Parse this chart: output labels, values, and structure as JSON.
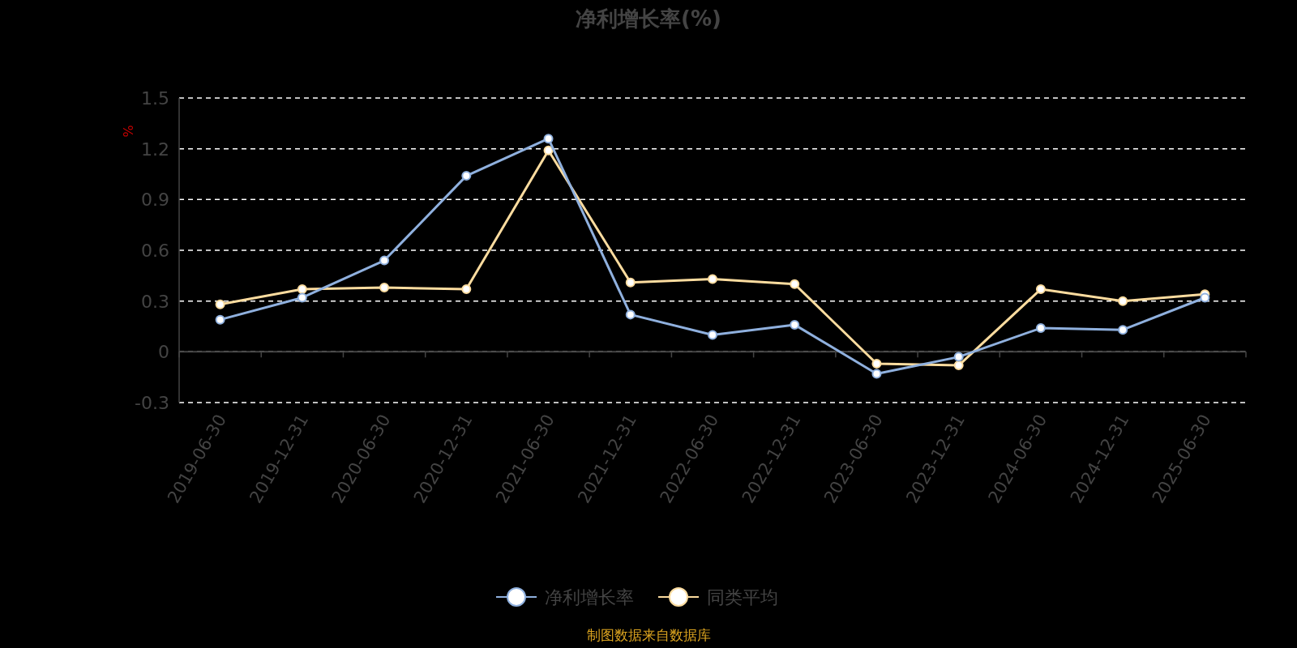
{
  "chart_data": {
    "type": "line",
    "title": "净利增长率(%)",
    "ylabel": "%",
    "categories": [
      "2019-06-30",
      "2019-12-31",
      "2020-06-30",
      "2020-12-31",
      "2021-06-30",
      "2021-12-31",
      "2022-06-30",
      "2022-12-31",
      "2023-06-30",
      "2023-12-31",
      "2024-06-30",
      "2024-12-31",
      "2025-06-30"
    ],
    "series": [
      {
        "name": "净利增长率",
        "color": "#8fb0de",
        "values": [
          0.19,
          0.32,
          0.54,
          1.04,
          1.26,
          0.22,
          0.1,
          0.16,
          -0.13,
          -0.03,
          0.14,
          0.13,
          0.32
        ]
      },
      {
        "name": "同类平均",
        "color": "#fcdc9f",
        "values": [
          0.28,
          0.37,
          0.38,
          0.37,
          1.19,
          0.41,
          0.43,
          0.4,
          -0.07,
          -0.08,
          0.37,
          0.3,
          0.34
        ]
      }
    ],
    "ylim": [
      -0.3,
      1.5
    ],
    "yticks": [
      -0.3,
      0,
      0.3,
      0.6,
      0.9,
      1.2,
      1.5
    ],
    "grid": "y",
    "legend": "bottom",
    "marker": "circle",
    "line_style": "solid",
    "annotations": [
      "制图数据来自数据库"
    ]
  }
}
